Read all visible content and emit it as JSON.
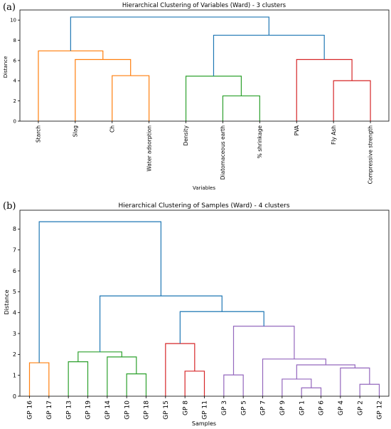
{
  "chart_data": [
    {
      "type": "dendrogram",
      "panel_label": "(a)",
      "title": "Hierarchical Clustering of Variables (Ward) - 3 clusters",
      "xlabel": "Variables",
      "ylabel": "Distance",
      "ylim": [
        0,
        11
      ],
      "yticks": [
        0,
        2,
        4,
        6,
        8,
        10
      ],
      "leaves": [
        "Starch",
        "Slag",
        "Ch",
        "Water adsorption",
        "Density",
        "Diatomaceous earth",
        "% shrinkage",
        "PVA",
        "Fly Ash",
        "Compressive strength"
      ],
      "colors": {
        "cluster1": "#ff7f0e",
        "cluster2": "#2ca02c",
        "cluster3": "#d62728",
        "above": "#1f77b4"
      },
      "merges": [
        {
          "left": "leaf:2",
          "right": "leaf:3",
          "height": 4.5,
          "color": "cluster1"
        },
        {
          "left": "leaf:1",
          "right": "node:0",
          "height": 6.1,
          "color": "cluster1"
        },
        {
          "left": "leaf:0",
          "right": "node:1",
          "height": 6.95,
          "color": "cluster1"
        },
        {
          "left": "leaf:5",
          "right": "leaf:6",
          "height": 2.5,
          "color": "cluster2"
        },
        {
          "left": "leaf:4",
          "right": "node:3",
          "height": 4.45,
          "color": "cluster2"
        },
        {
          "left": "leaf:8",
          "right": "leaf:9",
          "height": 4.0,
          "color": "cluster3"
        },
        {
          "left": "leaf:7",
          "right": "node:5",
          "height": 6.1,
          "color": "cluster3"
        },
        {
          "left": "node:4",
          "right": "node:6",
          "height": 8.5,
          "color": "above"
        },
        {
          "left": "node:2",
          "right": "node:7",
          "height": 10.3,
          "color": "above"
        }
      ]
    },
    {
      "type": "dendrogram",
      "panel_label": "(b)",
      "title": "Hierarchical Clustering of Samples (Ward) - 4 clusters",
      "xlabel": "Samples",
      "ylabel": "Distance",
      "ylim": [
        0,
        8.9
      ],
      "yticks": [
        0,
        1,
        2,
        3,
        4,
        5,
        6,
        7,
        8
      ],
      "leaves": [
        "GP 16",
        "GP 17",
        "GP 13",
        "GP 19",
        "GP 14",
        "GP 10",
        "GP 18",
        "GP 15",
        "GP 8",
        "GP 11",
        "GP 3",
        "GP 5",
        "GP 7",
        "GP 9",
        "GP 1",
        "GP 6",
        "GP 4",
        "GP 2",
        "GP 12"
      ],
      "colors": {
        "cluster1": "#ff7f0e",
        "cluster2": "#2ca02c",
        "cluster3": "#d62728",
        "cluster4": "#9467bd",
        "above": "#1f77b4"
      },
      "merges": [
        {
          "left": "leaf:0",
          "right": "leaf:1",
          "height": 1.6,
          "color": "cluster1"
        },
        {
          "left": "leaf:2",
          "right": "leaf:3",
          "height": 1.65,
          "color": "cluster2"
        },
        {
          "left": "leaf:5",
          "right": "leaf:6",
          "height": 1.07,
          "color": "cluster2"
        },
        {
          "left": "leaf:4",
          "right": "node:2",
          "height": 1.88,
          "color": "cluster2"
        },
        {
          "left": "node:1",
          "right": "node:3",
          "height": 2.12,
          "color": "cluster2"
        },
        {
          "left": "leaf:8",
          "right": "leaf:9",
          "height": 1.2,
          "color": "cluster3"
        },
        {
          "left": "leaf:7",
          "right": "node:5",
          "height": 2.52,
          "color": "cluster3"
        },
        {
          "left": "leaf:10",
          "right": "leaf:11",
          "height": 1.02,
          "color": "cluster4"
        },
        {
          "left": "leaf:14",
          "right": "leaf:15",
          "height": 0.4,
          "color": "cluster4"
        },
        {
          "left": "leaf:13",
          "right": "node:8",
          "height": 0.82,
          "color": "cluster4"
        },
        {
          "left": "leaf:17",
          "right": "leaf:18",
          "height": 0.57,
          "color": "cluster4"
        },
        {
          "left": "leaf:16",
          "right": "node:10",
          "height": 1.35,
          "color": "cluster4"
        },
        {
          "left": "node:9",
          "right": "node:11",
          "height": 1.5,
          "color": "cluster4"
        },
        {
          "left": "leaf:12",
          "right": "node:12",
          "height": 1.78,
          "color": "cluster4"
        },
        {
          "left": "node:7",
          "right": "node:13",
          "height": 3.35,
          "color": "cluster4"
        },
        {
          "left": "node:6",
          "right": "node:14",
          "height": 4.05,
          "color": "above"
        },
        {
          "left": "node:4",
          "right": "node:15",
          "height": 4.8,
          "color": "above"
        },
        {
          "left": "node:0",
          "right": "node:16",
          "height": 8.35,
          "color": "above"
        }
      ]
    }
  ]
}
